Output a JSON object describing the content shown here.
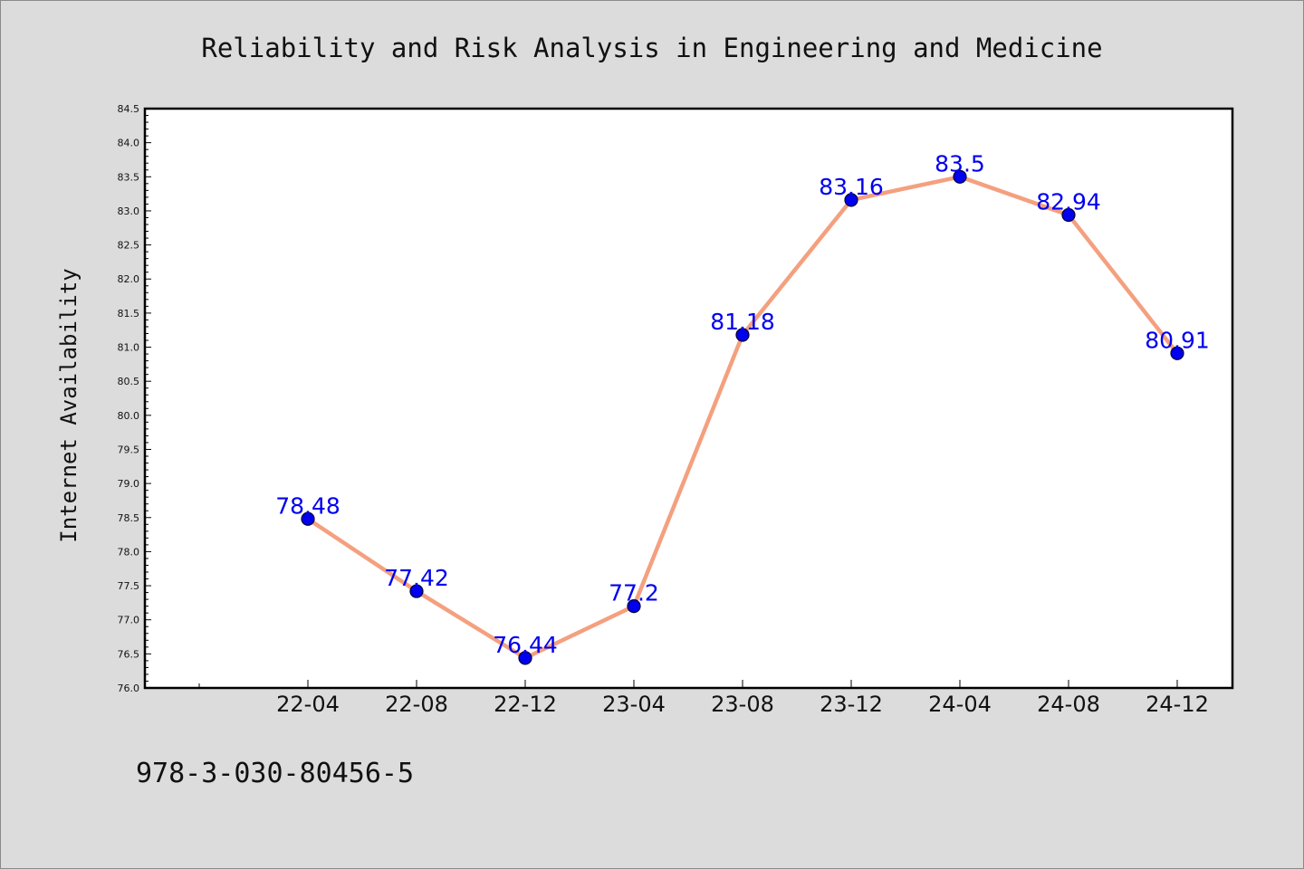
{
  "chart_data": {
    "type": "line",
    "title": "Reliability and Risk Analysis in Engineering and Medicine",
    "ylabel": "Internet Availability",
    "xlabel": "",
    "categories": [
      "22-04",
      "22-08",
      "22-12",
      "23-04",
      "23-08",
      "23-12",
      "24-04",
      "24-08",
      "24-12"
    ],
    "series": [
      {
        "values": [
          78.48,
          77.42,
          76.44,
          77.2,
          81.18,
          83.16,
          83.5,
          82.94,
          80.91
        ],
        "data_labels": [
          "78.48",
          "77.42",
          "76.44",
          "77.2",
          "81.18",
          "83.16",
          "83.5",
          "82.94",
          "80.91"
        ]
      }
    ],
    "ylim": [
      76.0,
      84.5
    ],
    "yticks": [
      "76.0",
      "76.5",
      "77.0",
      "77.5",
      "78.0",
      "78.5",
      "79.0",
      "79.5",
      "80.0",
      "80.5",
      "81.0",
      "81.5",
      "82.0",
      "82.5",
      "83.0",
      "83.5",
      "84.0",
      "84.5"
    ],
    "grid": false,
    "colors": {
      "line": "#f4a07f",
      "marker_fill": "#0000ee",
      "marker_edge": "#000033",
      "data_label": "#0000ee",
      "plot_background": "#ffffff",
      "figure_background": "#dcdcdc"
    }
  },
  "footer": {
    "text": "978-3-030-80456-5"
  }
}
